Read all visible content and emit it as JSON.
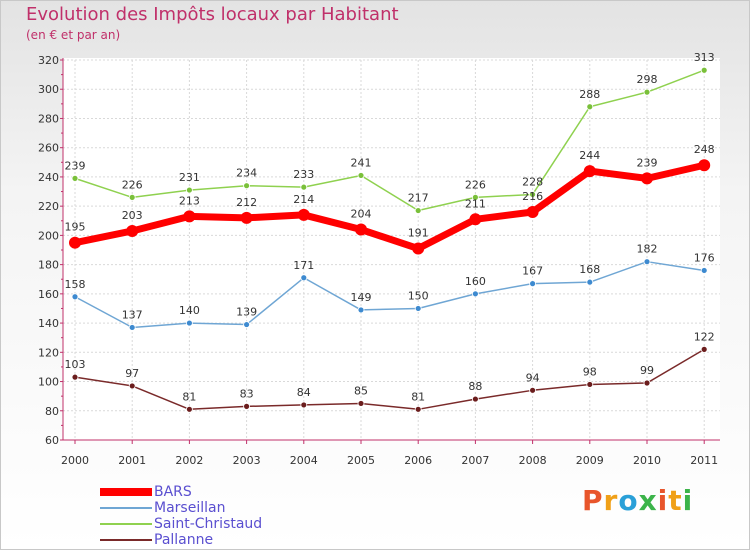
{
  "title": "Evolution des Impôts locaux par Habitant",
  "subtitle": "(en € et par an)",
  "logo": {
    "text": "Proxiti",
    "letters": [
      "P",
      "r",
      "o",
      "x",
      "i",
      "t",
      "i"
    ],
    "colors": [
      "#e8552b",
      "#f0a018",
      "#2aa0d8",
      "#3cb44a",
      "#e8552b",
      "#f0a018",
      "#3cb44a"
    ]
  },
  "chart_data": {
    "type": "line",
    "title": "Evolution des Impôts locaux par Habitant",
    "subtitle": "(en € et par an)",
    "xlabel": "",
    "ylabel": "",
    "ylim": [
      60,
      320
    ],
    "yticks": [
      60,
      80,
      100,
      120,
      140,
      160,
      180,
      200,
      220,
      240,
      260,
      280,
      300,
      320
    ],
    "grid": true,
    "legend_position": "bottom-left",
    "categories": [
      "2000",
      "2001",
      "2002",
      "2003",
      "2004",
      "2005",
      "2006",
      "2007",
      "2008",
      "2009",
      "2010",
      "2011"
    ],
    "series": [
      {
        "name": "Saint-Christaud",
        "color": "#8fd14f",
        "marker": "#7ac03a",
        "thick": false,
        "values": [
          239,
          226,
          231,
          234,
          233,
          241,
          217,
          226,
          228,
          288,
          298,
          313
        ]
      },
      {
        "name": "Marseillan",
        "color": "#6fa6d4",
        "marker": "#3d8ad0",
        "thick": false,
        "values": [
          158,
          137,
          140,
          139,
          171,
          149,
          150,
          160,
          167,
          168,
          182,
          176
        ]
      },
      {
        "name": "Pallanne",
        "color": "#7a2a2a",
        "marker": "#6b1d1d",
        "thick": false,
        "values": [
          103,
          97,
          81,
          83,
          84,
          85,
          81,
          88,
          94,
          98,
          99,
          122
        ]
      },
      {
        "name": "BARS",
        "color": "#ff0000",
        "marker": "#ff0000",
        "thick": true,
        "values": [
          195,
          203,
          213,
          212,
          214,
          204,
          191,
          211,
          216,
          244,
          239,
          248
        ]
      }
    ],
    "legend": [
      {
        "name": "BARS",
        "color": "#ff0000",
        "thick": true
      },
      {
        "name": "Marseillan",
        "color": "#6fa6d4",
        "thick": false
      },
      {
        "name": "Saint-Christaud",
        "color": "#8fd14f",
        "thick": false
      },
      {
        "name": "Pallanne",
        "color": "#7a2a2a",
        "thick": false
      }
    ]
  }
}
